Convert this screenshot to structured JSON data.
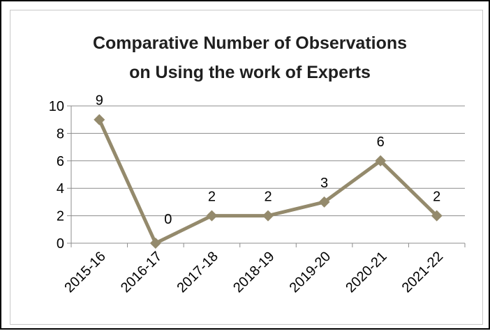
{
  "chart_data": {
    "type": "line",
    "title_lines": [
      "Comparative Number of Observations",
      "on Using the work of Experts"
    ],
    "categories": [
      "2015-16",
      "2016-17",
      "2017-18",
      "2018-19",
      "2019-20",
      "2020-21",
      "2021-22"
    ],
    "series": [
      {
        "values": [
          9,
          0,
          2,
          2,
          3,
          6,
          2
        ]
      }
    ],
    "ylim": [
      0,
      10
    ],
    "yticks": [
      0,
      2,
      4,
      6,
      8,
      10
    ],
    "xlabel": "",
    "ylabel": "",
    "grid": true,
    "legend": "none",
    "data_labels": true,
    "line_color": "#948a6c",
    "grid_color": "#8c8c8c",
    "axis_color": "#8c8c8c"
  }
}
